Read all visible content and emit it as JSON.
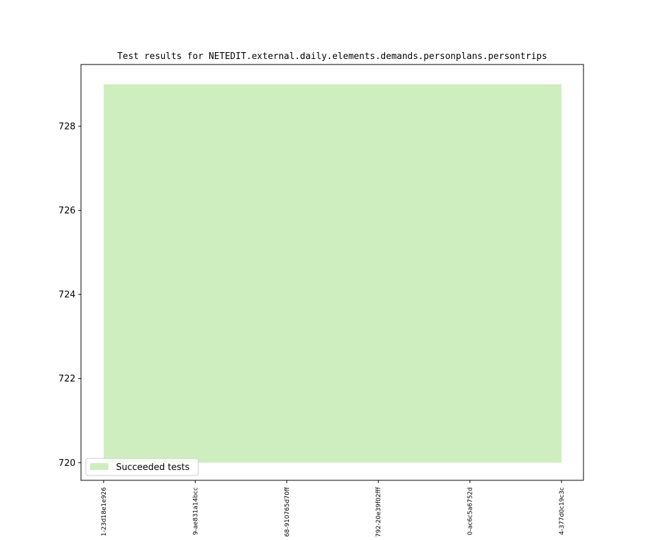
{
  "chart_data": {
    "type": "area",
    "title": "Test results for NETEDIT.external.daily.elements.demands.personplans.persontrips",
    "xlabel": "",
    "ylabel": "",
    "categories": [
      "1-23d18e1e926",
      "9-ae831a14bcc",
      "68-910765d70ff",
      "792-20e39f02fff",
      "0-ac6c5a6752d",
      "4-377d0c19c3c"
    ],
    "series": [
      {
        "name": "Succeeded tests",
        "values": [
          729,
          729,
          729,
          729,
          729,
          729
        ],
        "baseline": 720,
        "color": "#cfeebf"
      }
    ],
    "yticks": [
      720,
      722,
      724,
      726,
      728
    ],
    "ylim": [
      719.58,
      729.47
    ],
    "grid": false,
    "legend": "lower-left"
  }
}
